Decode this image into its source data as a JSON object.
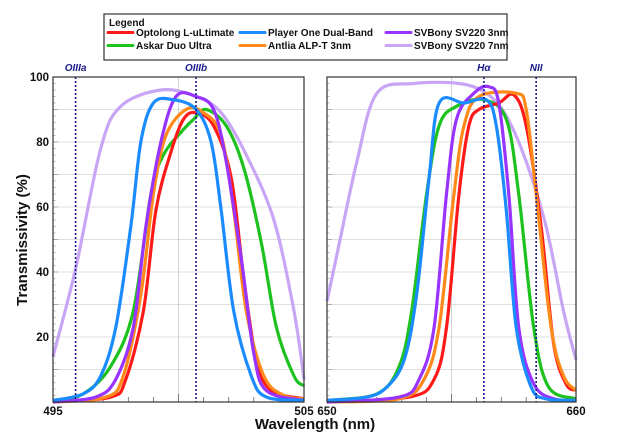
{
  "chart_data": [
    {
      "type": "line",
      "panel": "left",
      "xlim": [
        495,
        505
      ],
      "ylim": [
        0,
        100
      ],
      "xticks": [
        "495",
        "505"
      ],
      "yticks": [
        "20",
        "40",
        "60",
        "80",
        "100"
      ],
      "ylabel": "Transmissivity (%)",
      "grid": true,
      "annotations": [
        {
          "label": "OIIIa",
          "x": 495.9
        },
        {
          "label": "OIIIb",
          "x": 500.7
        }
      ],
      "series": [
        {
          "name": "SVBony SV220 7nm",
          "points": [
            [
              495,
              14
            ],
            [
              495.9,
              41
            ],
            [
              496.9,
              78
            ],
            [
              497.7,
              91
            ],
            [
              499.3,
              96
            ],
            [
              500.7,
              94
            ],
            [
              501.7,
              89
            ],
            [
              502.7,
              76
            ],
            [
              503.8,
              56
            ],
            [
              504.6,
              28
            ],
            [
              505,
              7
            ]
          ]
        },
        {
          "name": "Askar Duo Ultra",
          "points": [
            [
              495,
              0.5
            ],
            [
              496.2,
              2.5
            ],
            [
              497.3,
              11
            ],
            [
              498.2,
              28
            ],
            [
              498.9,
              64
            ],
            [
              499.4,
              76
            ],
            [
              500.1,
              83
            ],
            [
              500.6,
              87
            ],
            [
              501.1,
              90
            ],
            [
              501.9,
              85
            ],
            [
              502.6,
              72
            ],
            [
              503.3,
              49
            ],
            [
              503.9,
              23
            ],
            [
              504.6,
              8
            ],
            [
              505,
              5
            ]
          ]
        },
        {
          "name": "Optolong L-uLtimate",
          "points": [
            [
              495,
              0
            ],
            [
              497.3,
              1.5
            ],
            [
              497.9,
              7
            ],
            [
              498.6,
              28
            ],
            [
              499.1,
              59
            ],
            [
              499.7,
              77
            ],
            [
              500.2,
              87
            ],
            [
              500.7,
              89
            ],
            [
              501.4,
              85
            ],
            [
              502.1,
              69
            ],
            [
              502.6,
              38
            ],
            [
              503.1,
              13
            ],
            [
              503.7,
              3.5
            ],
            [
              505,
              1
            ]
          ]
        },
        {
          "name": "Antlia ALP-T 3nm",
          "points": [
            [
              495,
              0
            ],
            [
              497.1,
              1.5
            ],
            [
              497.8,
              8
            ],
            [
              498.5,
              33
            ],
            [
              499,
              64
            ],
            [
              499.5,
              82
            ],
            [
              500.3,
              90
            ],
            [
              501,
              89
            ],
            [
              501.7,
              82
            ],
            [
              502.2,
              59
            ],
            [
              502.7,
              28
            ],
            [
              503.4,
              8
            ],
            [
              504.2,
              2
            ],
            [
              505,
              1
            ]
          ]
        },
        {
          "name": "SVBony SV220 3nm",
          "points": [
            [
              495,
              0
            ],
            [
              496.7,
              1.5
            ],
            [
              497.5,
              7
            ],
            [
              498.2,
              23
            ],
            [
              498.7,
              54
            ],
            [
              499.3,
              80
            ],
            [
              499.9,
              94
            ],
            [
              500.7,
              94
            ],
            [
              501.4,
              90
            ],
            [
              501.9,
              74
            ],
            [
              502.5,
              44
            ],
            [
              503,
              15
            ],
            [
              503.5,
              3.5
            ],
            [
              505,
              0.5
            ]
          ]
        },
        {
          "name": "Player One Dual-Band",
          "points": [
            [
              495,
              0.5
            ],
            [
              496.2,
              2.5
            ],
            [
              496.9,
              8
            ],
            [
              497.5,
              23
            ],
            [
              498.1,
              54
            ],
            [
              498.5,
              80
            ],
            [
              499,
              92
            ],
            [
              499.8,
              93
            ],
            [
              500.7,
              90
            ],
            [
              501.3,
              80
            ],
            [
              501.7,
              59
            ],
            [
              502.2,
              28
            ],
            [
              502.9,
              8
            ],
            [
              503.5,
              1.5
            ],
            [
              505,
              0.5
            ]
          ]
        }
      ]
    },
    {
      "type": "line",
      "panel": "right",
      "xlim": [
        650,
        660
      ],
      "ylim": [
        0,
        100
      ],
      "xticks": [
        "650",
        "660"
      ],
      "grid": true,
      "annotations": [
        {
          "label": "Hα",
          "x": 656.3
        },
        {
          "label": "NII",
          "x": 658.4
        }
      ],
      "series": [
        {
          "name": "SVBony SV220 7nm",
          "points": [
            [
              650,
              31
            ],
            [
              650.5,
              49
            ],
            [
              651.2,
              74
            ],
            [
              652,
              95
            ],
            [
              653.5,
              98
            ],
            [
              655.3,
              98
            ],
            [
              656.4,
              95
            ],
            [
              657.2,
              88
            ],
            [
              658,
              74
            ],
            [
              658.8,
              54
            ],
            [
              659.5,
              28
            ],
            [
              660,
              13
            ]
          ]
        },
        {
          "name": "Askar Duo Ultra",
          "points": [
            [
              650,
              0.5
            ],
            [
              652,
              2.5
            ],
            [
              652.9,
              11
            ],
            [
              653.4,
              28
            ],
            [
              654,
              64
            ],
            [
              654.5,
              85
            ],
            [
              655.2,
              91
            ],
            [
              656.3,
              93
            ],
            [
              657.2,
              87
            ],
            [
              657.7,
              64
            ],
            [
              658.3,
              23
            ],
            [
              658.9,
              4.6
            ],
            [
              660,
              1
            ]
          ]
        },
        {
          "name": "Optolong L-uLtimate",
          "points": [
            [
              650,
              0
            ],
            [
              653.3,
              1.5
            ],
            [
              654.3,
              7
            ],
            [
              654.8,
              23
            ],
            [
              655.3,
              64
            ],
            [
              655.7,
              85
            ],
            [
              656.1,
              90
            ],
            [
              656.9,
              92
            ],
            [
              657.5,
              94.5
            ],
            [
              658,
              85
            ],
            [
              658.6,
              54
            ],
            [
              659.1,
              18
            ],
            [
              659.6,
              5.6
            ],
            [
              660,
              3.6
            ]
          ]
        },
        {
          "name": "Antlia ALP-T 3nm",
          "points": [
            [
              650,
              0
            ],
            [
              652.9,
              1
            ],
            [
              653.9,
              7
            ],
            [
              654.5,
              23
            ],
            [
              655.1,
              64
            ],
            [
              655.5,
              85
            ],
            [
              656.1,
              94
            ],
            [
              657.6,
              95
            ],
            [
              658,
              90
            ],
            [
              658.4,
              64
            ],
            [
              659,
              23
            ],
            [
              659.5,
              8
            ],
            [
              660,
              3.6
            ]
          ]
        },
        {
          "name": "SVBony SV220 3nm",
          "points": [
            [
              650,
              0
            ],
            [
              652.9,
              1.5
            ],
            [
              653.7,
              7
            ],
            [
              654.3,
              23
            ],
            [
              654.8,
              64
            ],
            [
              655.2,
              87
            ],
            [
              655.9,
              95
            ],
            [
              656.5,
              97
            ],
            [
              656.9,
              92
            ],
            [
              657.3,
              64
            ],
            [
              657.7,
              23
            ],
            [
              658.3,
              5.6
            ],
            [
              659.1,
              1
            ],
            [
              660,
              0.5
            ]
          ]
        },
        {
          "name": "Player One Dual-Band",
          "points": [
            [
              650,
              0.5
            ],
            [
              651.6,
              1.5
            ],
            [
              652.4,
              4.6
            ],
            [
              653.1,
              13
            ],
            [
              653.6,
              33
            ],
            [
              654.1,
              69
            ],
            [
              654.5,
              92
            ],
            [
              655.5,
              92
            ],
            [
              656.4,
              93
            ],
            [
              656.8,
              85
            ],
            [
              657.2,
              59
            ],
            [
              657.6,
              23
            ],
            [
              658.2,
              4.6
            ],
            [
              658.8,
              1
            ],
            [
              660,
              0.5
            ]
          ]
        }
      ]
    }
  ],
  "xlabel": "Wavelength (nm)",
  "legend": {
    "title": "Legend",
    "placement": "top-center",
    "entries": [
      {
        "name": "Optolong L-uLtimate",
        "color": "#ff1a1a"
      },
      {
        "name": "Askar Duo Ultra",
        "color": "#1ec21e"
      },
      {
        "name": "Player One Dual-Band",
        "color": "#1a8cff"
      },
      {
        "name": "Antlia ALP-T 3nm",
        "color": "#ff8a1a"
      },
      {
        "name": "SVBony SV220 3nm",
        "color": "#9933ff"
      },
      {
        "name": "SVBony SV220 7nm",
        "color": "#c9a6f5"
      }
    ]
  },
  "colors": {
    "Optolong L-uLtimate": "#ff1a1a",
    "Askar Duo Ultra": "#1ec21e",
    "Player One Dual-Band": "#1a8cff",
    "Antlia ALP-T 3nm": "#ff8a1a",
    "SVBony SV220 3nm": "#9933ff",
    "SVBony SV220 7nm": "#c9a6f5",
    "annotation": "#1a1a8c"
  }
}
